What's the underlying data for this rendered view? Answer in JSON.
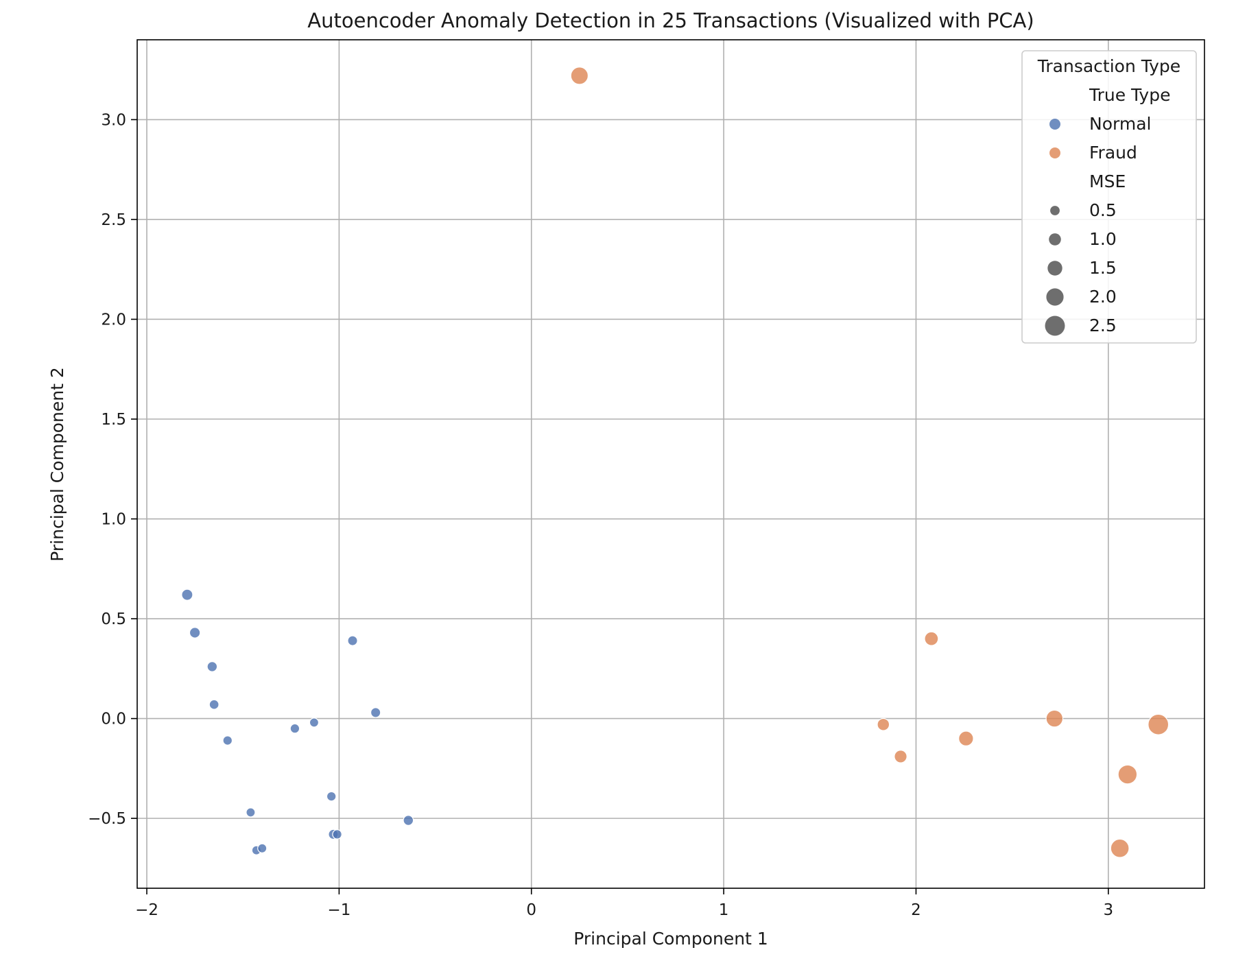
{
  "chart_data": {
    "type": "scatter",
    "title": "Autoencoder Anomaly Detection in 25 Transactions (Visualized with PCA)",
    "xlabel": "Principal Component 1",
    "ylabel": "Principal Component 2",
    "xlim": [
      -2.05,
      3.5
    ],
    "ylim": [
      -0.85,
      3.4
    ],
    "xticks": [
      -2,
      -1,
      0,
      1,
      2,
      3
    ],
    "xtick_labels": [
      "−2",
      "−1",
      "0",
      "1",
      "2",
      "3"
    ],
    "yticks": [
      -0.5,
      0.0,
      0.5,
      1.0,
      1.5,
      2.0,
      2.5,
      3.0
    ],
    "ytick_labels": [
      "−0.5",
      "0.0",
      "0.5",
      "1.0",
      "1.5",
      "2.0",
      "2.5",
      "3.0"
    ],
    "grid": true,
    "size_variable": "MSE",
    "series": [
      {
        "name": "Normal",
        "color": "#4C72B0",
        "points": [
          {
            "x": -1.79,
            "y": 0.62,
            "mse": 0.8
          },
          {
            "x": -1.75,
            "y": 0.43,
            "mse": 0.7
          },
          {
            "x": -1.66,
            "y": 0.26,
            "mse": 0.6
          },
          {
            "x": -1.65,
            "y": 0.07,
            "mse": 0.5
          },
          {
            "x": -1.58,
            "y": -0.11,
            "mse": 0.45
          },
          {
            "x": -1.46,
            "y": -0.47,
            "mse": 0.4
          },
          {
            "x": -1.43,
            "y": -0.66,
            "mse": 0.4
          },
          {
            "x": -1.4,
            "y": -0.65,
            "mse": 0.4
          },
          {
            "x": -1.23,
            "y": -0.05,
            "mse": 0.45
          },
          {
            "x": -1.13,
            "y": -0.02,
            "mse": 0.4
          },
          {
            "x": -1.04,
            "y": -0.39,
            "mse": 0.45
          },
          {
            "x": -1.03,
            "y": -0.58,
            "mse": 0.55
          },
          {
            "x": -1.01,
            "y": -0.58,
            "mse": 0.45
          },
          {
            "x": -0.93,
            "y": 0.39,
            "mse": 0.55
          },
          {
            "x": -0.81,
            "y": 0.03,
            "mse": 0.55
          },
          {
            "x": -0.64,
            "y": -0.51,
            "mse": 0.6
          }
        ]
      },
      {
        "name": "Fraud",
        "color": "#DD8452",
        "points": [
          {
            "x": 0.25,
            "y": 3.22,
            "mse": 2.0
          },
          {
            "x": 1.83,
            "y": -0.03,
            "mse": 1.0
          },
          {
            "x": 1.92,
            "y": -0.19,
            "mse": 1.1
          },
          {
            "x": 2.08,
            "y": 0.4,
            "mse": 1.3
          },
          {
            "x": 2.26,
            "y": -0.1,
            "mse": 1.5
          },
          {
            "x": 2.72,
            "y": 0.0,
            "mse": 1.9
          },
          {
            "x": 3.06,
            "y": -0.65,
            "mse": 2.2
          },
          {
            "x": 3.1,
            "y": -0.28,
            "mse": 2.3
          },
          {
            "x": 3.26,
            "y": -0.03,
            "mse": 2.6
          }
        ]
      }
    ],
    "legend": {
      "title": "Transaction Type",
      "placement": "top-right",
      "hue_title": "True Type",
      "hue_entries": [
        {
          "label": "Normal",
          "color": "#4C72B0"
        },
        {
          "label": "Fraud",
          "color": "#DD8452"
        }
      ],
      "size_title": "MSE",
      "size_entries": [
        {
          "label": "0.5",
          "mse": 0.5
        },
        {
          "label": "1.0",
          "mse": 1.0
        },
        {
          "label": "1.5",
          "mse": 1.5
        },
        {
          "label": "2.0",
          "mse": 2.0
        },
        {
          "label": "2.5",
          "mse": 2.5
        }
      ],
      "size_color": "#555555"
    }
  }
}
